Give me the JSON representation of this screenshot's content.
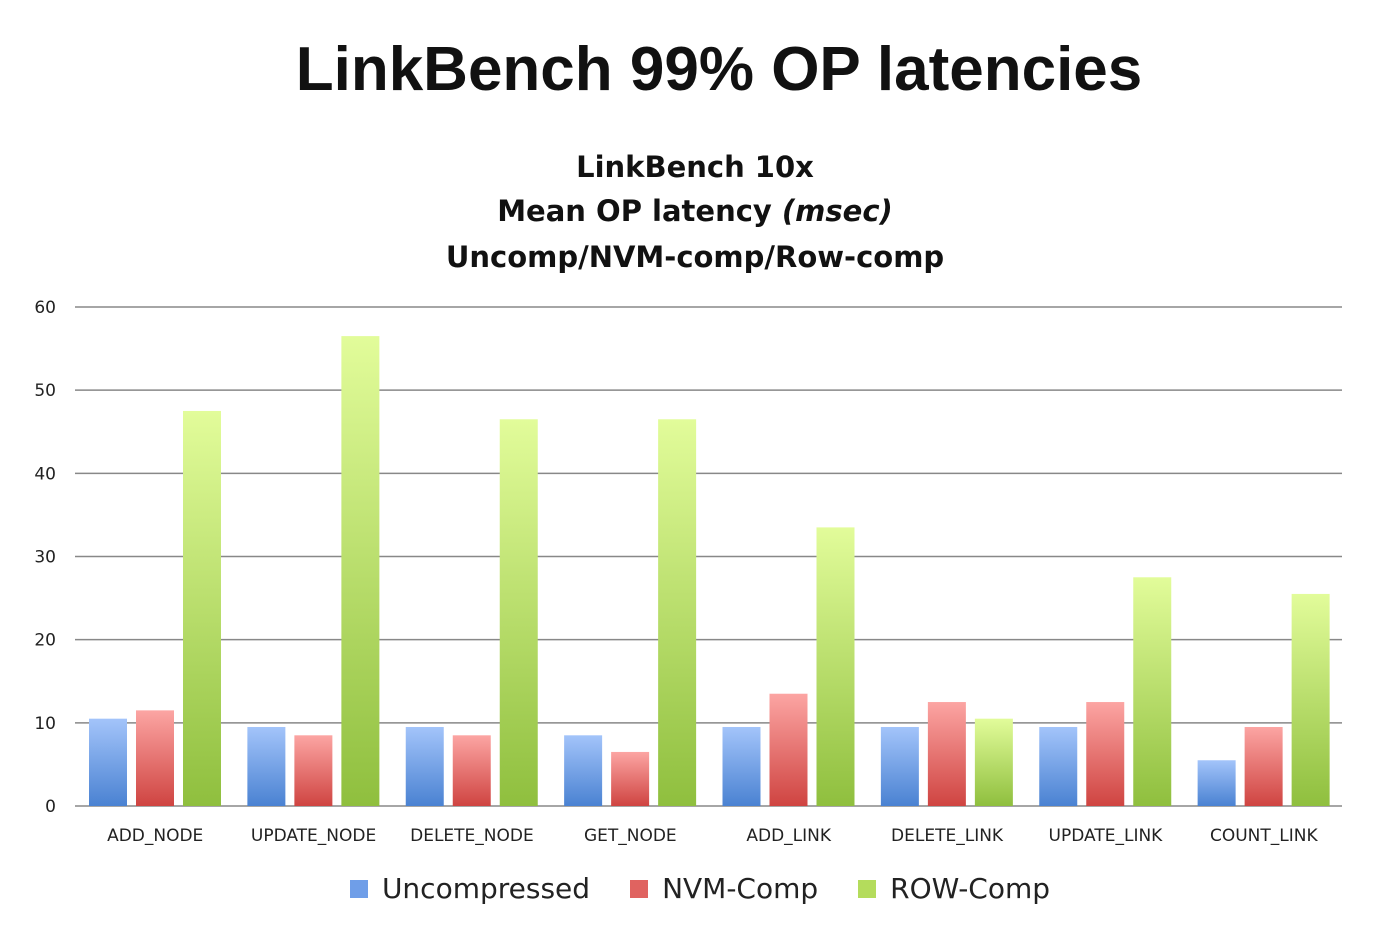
{
  "chart_data": {
    "type": "bar",
    "title": "LinkBench 99% OP latencies",
    "subtitle": [
      "LinkBench 10x",
      "Mean OP latency ",
      "(msec)",
      "Uncomp/NVM-comp/Row-comp"
    ],
    "categories": [
      "ADD_NODE",
      "UPDATE_NODE",
      "DELETE_NODE",
      "GET_NODE",
      "ADD_LINK",
      "DELETE_LINK",
      "UPDATE_LINK",
      "COUNT_LINK"
    ],
    "series": [
      {
        "name": "Uncompressed",
        "color": "#5b8fd9",
        "values": [
          10.5,
          9.5,
          9.5,
          8.5,
          9.5,
          9.5,
          9.5,
          5.5
        ]
      },
      {
        "name": "NVM-Comp",
        "color": "#d9534f",
        "values": [
          11.5,
          8.5,
          8.5,
          6.5,
          13.5,
          12.5,
          12.5,
          9.5
        ]
      },
      {
        "name": "ROW-Comp",
        "color": "#9ccc4a",
        "values": [
          47.5,
          56.5,
          46.5,
          46.5,
          33.5,
          10.5,
          27.5,
          25.5
        ]
      }
    ],
    "ylim": [
      0,
      60
    ],
    "yticks": [
      0,
      10,
      20,
      30,
      40,
      50,
      60
    ],
    "grid": true,
    "legend": "bottom"
  }
}
